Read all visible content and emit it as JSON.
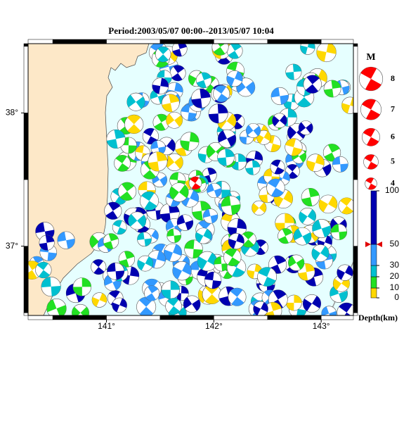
{
  "title": "Period:2003/05/07 00:00--2013/05/07 10:04",
  "map": {
    "lon_range": [
      140.27,
      143.3
    ],
    "lat_range": [
      36.48,
      38.52
    ],
    "lon_ticks": [
      {
        "value": 141,
        "label": "141°"
      },
      {
        "value": 142,
        "label": "142°"
      },
      {
        "value": 143,
        "label": "143°"
      }
    ],
    "lat_ticks": [
      {
        "value": 37,
        "label": "37°"
      },
      {
        "value": 38,
        "label": "38°"
      }
    ]
  },
  "magnitude_legend": {
    "label": "M",
    "values": [
      8,
      7,
      6,
      5,
      4
    ]
  },
  "depth_scale": {
    "label": "Depth(km)",
    "ticks": [
      0,
      10,
      20,
      30,
      50,
      100
    ],
    "colors": [
      "#ffd800",
      "#22e022",
      "#00c0d0",
      "#3399ff",
      "#0000b0"
    ],
    "marker": 50
  }
}
